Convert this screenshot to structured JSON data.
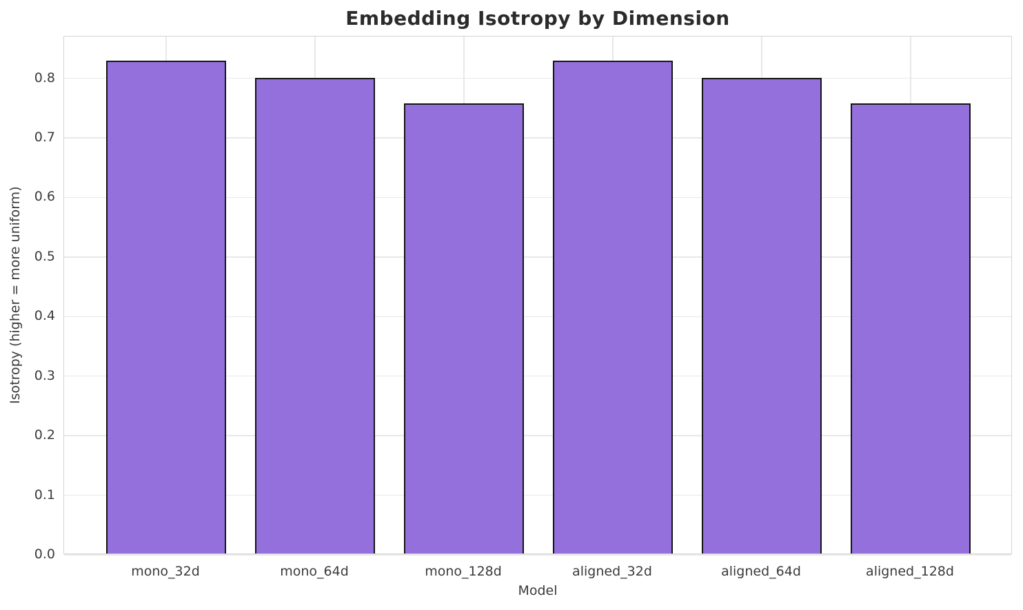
{
  "chart_data": {
    "type": "bar",
    "title": "Embedding Isotropy by Dimension",
    "xlabel": "Model",
    "ylabel": "Isotropy (higher = more uniform)",
    "categories": [
      "mono_32d",
      "mono_64d",
      "mono_128d",
      "aligned_32d",
      "aligned_64d",
      "aligned_128d"
    ],
    "values": [
      0.827,
      0.798,
      0.756,
      0.827,
      0.798,
      0.756
    ],
    "ylim": [
      0,
      0.87
    ],
    "yticks": [
      0.0,
      0.1,
      0.2,
      0.3,
      0.4,
      0.5,
      0.6,
      0.7,
      0.8
    ],
    "grid": true,
    "legend": "none",
    "bar_color": "#9370db",
    "bar_edge_color": "#141414",
    "grid_color": "#e8e8e8",
    "spine_color": "#d4d4d4",
    "title_color": "#2b2b2b",
    "tick_color": "#3a3a3a"
  }
}
